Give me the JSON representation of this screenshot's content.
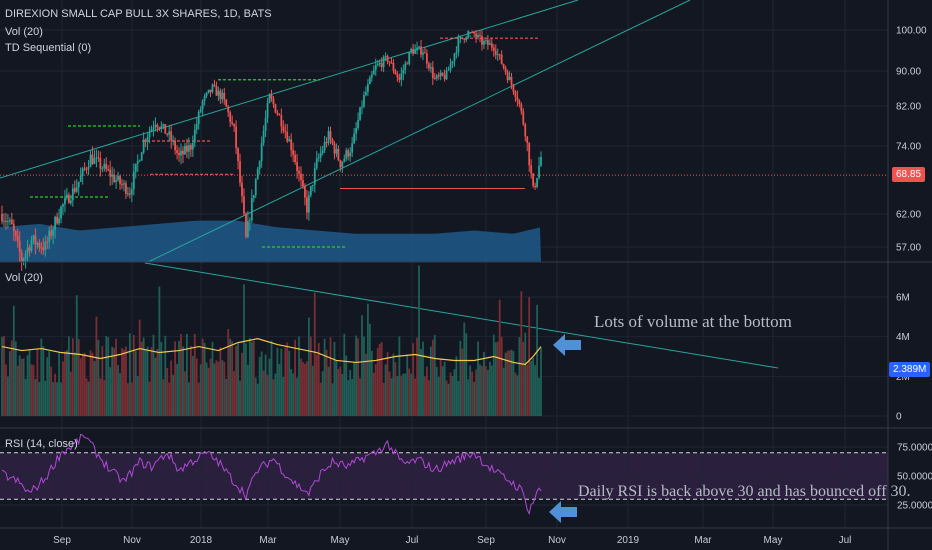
{
  "chart_data": [
    {
      "type": "candlestick",
      "title": "DIREXION SMALL CAP BULL 3X SHARES, 1D, BATS",
      "overlay_labels": [
        "Vol (20)",
        "TD Sequential (0)"
      ],
      "ylim": [
        53,
        103
      ],
      "y_ticks": [
        "100.00",
        "90.00",
        "82.00",
        "74.00",
        "62.00",
        "57.00"
      ],
      "y_tick_values": [
        100,
        90,
        82,
        74,
        62,
        57
      ],
      "last_price": "68.85",
      "x_ticks": [
        "Sep",
        "Nov",
        "2018",
        "Mar",
        "May",
        "Jul",
        "Sep",
        "Nov",
        "2019",
        "Mar",
        "May",
        "Jul"
      ],
      "colors": {
        "up": "#26a69a",
        "down": "#ef5350",
        "trend": "#26a69a",
        "price_line": "#ef5350"
      },
      "price_path": [
        [
          0,
          62
        ],
        [
          5,
          60
        ],
        [
          10,
          55
        ],
        [
          15,
          58
        ],
        [
          22,
          57
        ],
        [
          30,
          63
        ],
        [
          38,
          67
        ],
        [
          45,
          72
        ],
        [
          52,
          70
        ],
        [
          58,
          68
        ],
        [
          65,
          66
        ],
        [
          72,
          75
        ],
        [
          78,
          79
        ],
        [
          85,
          76
        ],
        [
          90,
          72
        ],
        [
          96,
          74
        ],
        [
          102,
          83
        ],
        [
          107,
          86
        ],
        [
          112,
          84
        ],
        [
          118,
          77
        ],
        [
          124,
          58
        ],
        [
          130,
          70
        ],
        [
          136,
          84
        ],
        [
          142,
          79
        ],
        [
          148,
          73
        ],
        [
          155,
          63
        ],
        [
          160,
          71
        ],
        [
          166,
          76
        ],
        [
          172,
          71
        ],
        [
          178,
          74
        ],
        [
          184,
          84
        ],
        [
          190,
          91
        ],
        [
          196,
          93
        ],
        [
          202,
          88
        ],
        [
          208,
          95
        ],
        [
          214,
          95
        ],
        [
          220,
          88
        ],
        [
          226,
          89
        ],
        [
          232,
          97
        ],
        [
          238,
          100
        ],
        [
          244,
          97
        ],
        [
          250,
          96
        ],
        [
          256,
          90
        ],
        [
          262,
          84
        ],
        [
          266,
          77
        ],
        [
          270,
          66
        ],
        [
          274,
          72
        ]
      ],
      "volume_profile": [
        [
          0,
          60
        ],
        [
          20,
          60.5
        ],
        [
          40,
          59.5
        ],
        [
          60,
          60
        ],
        [
          80,
          60.5
        ],
        [
          100,
          61
        ],
        [
          120,
          61
        ],
        [
          140,
          60
        ],
        [
          160,
          59.5
        ],
        [
          180,
          59
        ],
        [
          200,
          59
        ],
        [
          220,
          59
        ],
        [
          240,
          59.5
        ],
        [
          260,
          59
        ],
        [
          274,
          60
        ]
      ]
    },
    {
      "type": "bar",
      "title": "Vol (20)",
      "y_ticks": [
        "6M",
        "4M",
        "2M",
        "0"
      ],
      "y_tick_values": [
        6,
        4,
        2,
        0
      ],
      "ylim": [
        -0.4,
        7
      ],
      "last_ma": "2.389M",
      "ma_path": [
        [
          0,
          3.5
        ],
        [
          10,
          3.3
        ],
        [
          20,
          3.4
        ],
        [
          30,
          3.2
        ],
        [
          40,
          3.1
        ],
        [
          50,
          2.9
        ],
        [
          60,
          3.1
        ],
        [
          70,
          3.4
        ],
        [
          80,
          3.2
        ],
        [
          90,
          3.3
        ],
        [
          100,
          3.5
        ],
        [
          110,
          3.3
        ],
        [
          120,
          3.7
        ],
        [
          130,
          3.9
        ],
        [
          140,
          3.6
        ],
        [
          150,
          3.4
        ],
        [
          160,
          3.2
        ],
        [
          170,
          2.8
        ],
        [
          180,
          2.7
        ],
        [
          190,
          2.8
        ],
        [
          200,
          3.0
        ],
        [
          210,
          3.1
        ],
        [
          220,
          2.9
        ],
        [
          230,
          2.8
        ],
        [
          240,
          2.8
        ],
        [
          250,
          3.0
        ],
        [
          260,
          2.7
        ],
        [
          266,
          2.6
        ],
        [
          270,
          3.0
        ],
        [
          274,
          3.5
        ]
      ],
      "peaks": [
        [
          268,
          6.0
        ],
        [
          272,
          5.6
        ],
        [
          266,
          4.2
        ]
      ]
    },
    {
      "type": "line",
      "title": "RSI (14, close)",
      "y_ticks": [
        "75.0000",
        "50.0000",
        "25.0000"
      ],
      "y_tick_values": [
        75,
        50,
        25
      ],
      "ylim": [
        13,
        90
      ],
      "bands": [
        30,
        70
      ],
      "rsi_path": [
        [
          0,
          52
        ],
        [
          8,
          45
        ],
        [
          14,
          35
        ],
        [
          22,
          48
        ],
        [
          30,
          70
        ],
        [
          36,
          76
        ],
        [
          42,
          85
        ],
        [
          48,
          70
        ],
        [
          55,
          55
        ],
        [
          62,
          45
        ],
        [
          70,
          62
        ],
        [
          76,
          58
        ],
        [
          84,
          70
        ],
        [
          90,
          55
        ],
        [
          96,
          62
        ],
        [
          104,
          70
        ],
        [
          110,
          62
        ],
        [
          118,
          45
        ],
        [
          124,
          34
        ],
        [
          130,
          55
        ],
        [
          138,
          65
        ],
        [
          144,
          52
        ],
        [
          150,
          42
        ],
        [
          156,
          35
        ],
        [
          162,
          52
        ],
        [
          168,
          62
        ],
        [
          176,
          58
        ],
        [
          184,
          66
        ],
        [
          190,
          70
        ],
        [
          196,
          78
        ],
        [
          204,
          60
        ],
        [
          212,
          64
        ],
        [
          220,
          55
        ],
        [
          228,
          62
        ],
        [
          234,
          66
        ],
        [
          240,
          70
        ],
        [
          246,
          60
        ],
        [
          252,
          52
        ],
        [
          258,
          46
        ],
        [
          264,
          38
        ],
        [
          268,
          20
        ],
        [
          272,
          36
        ],
        [
          274,
          38
        ]
      ]
    }
  ],
  "annotations": {
    "volume_note": "Lots of volume at the bottom",
    "rsi_note": "Daily RSI is back above 30 and has bounced off 30."
  }
}
